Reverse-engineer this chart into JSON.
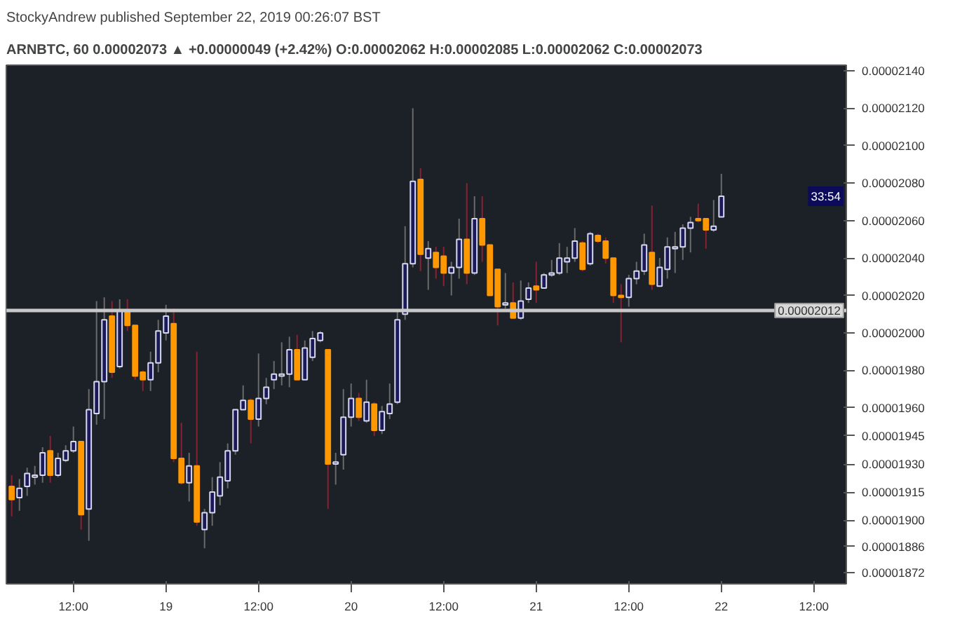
{
  "chart_data": {
    "type": "candlestick",
    "title": "StockyAndrew published September 22, 2019 00:26:07 BST",
    "subtitle": "ARNBTC, 60  0.00002073 ▲ +0.00000049 (+2.42%)  O:0.00002062  H:0.00002085  L:0.00002062  C:0.00002073",
    "x": [
      "2019-09-18T04:00",
      "2019-09-18T05:00",
      "2019-09-18T06:00",
      "2019-09-18T07:00",
      "2019-09-18T08:00",
      "2019-09-18T09:00",
      "2019-09-18T10:00",
      "2019-09-18T11:00",
      "2019-09-18T12:00",
      "2019-09-18T13:00",
      "2019-09-18T14:00",
      "2019-09-18T15:00",
      "2019-09-18T16:00",
      "2019-09-18T17:00",
      "2019-09-18T18:00",
      "2019-09-18T19:00",
      "2019-09-18T20:00",
      "2019-09-18T21:00",
      "2019-09-18T22:00",
      "2019-09-18T23:00",
      "2019-09-19T00:00",
      "2019-09-19T01:00",
      "2019-09-19T02:00",
      "2019-09-19T03:00",
      "2019-09-19T04:00",
      "2019-09-19T05:00",
      "2019-09-19T06:00",
      "2019-09-19T07:00",
      "2019-09-19T08:00",
      "2019-09-19T09:00",
      "2019-09-19T10:00",
      "2019-09-19T11:00",
      "2019-09-19T12:00",
      "2019-09-19T13:00",
      "2019-09-19T14:00",
      "2019-09-19T15:00",
      "2019-09-19T16:00",
      "2019-09-19T17:00",
      "2019-09-19T18:00",
      "2019-09-19T19:00",
      "2019-09-19T20:00",
      "2019-09-19T21:00",
      "2019-09-19T22:00",
      "2019-09-19T23:00",
      "2019-09-20T00:00",
      "2019-09-20T01:00",
      "2019-09-20T02:00",
      "2019-09-20T03:00",
      "2019-09-20T04:00",
      "2019-09-20T05:00",
      "2019-09-20T06:00",
      "2019-09-20T07:00",
      "2019-09-20T08:00",
      "2019-09-20T09:00",
      "2019-09-20T10:00",
      "2019-09-20T11:00",
      "2019-09-20T12:00",
      "2019-09-20T13:00",
      "2019-09-20T14:00",
      "2019-09-20T15:00",
      "2019-09-20T16:00",
      "2019-09-20T17:00",
      "2019-09-20T18:00",
      "2019-09-20T19:00",
      "2019-09-20T20:00",
      "2019-09-20T21:00",
      "2019-09-20T22:00",
      "2019-09-20T23:00",
      "2019-09-21T00:00",
      "2019-09-21T01:00",
      "2019-09-21T02:00",
      "2019-09-21T03:00",
      "2019-09-21T04:00",
      "2019-09-21T05:00",
      "2019-09-21T06:00",
      "2019-09-21T07:00",
      "2019-09-21T08:00",
      "2019-09-21T09:00",
      "2019-09-21T10:00",
      "2019-09-21T11:00",
      "2019-09-21T12:00",
      "2019-09-21T13:00",
      "2019-09-21T14:00",
      "2019-09-21T15:00",
      "2019-09-21T16:00",
      "2019-09-21T17:00",
      "2019-09-21T18:00",
      "2019-09-21T19:00",
      "2019-09-21T20:00",
      "2019-09-21T21:00",
      "2019-09-21T22:00",
      "2019-09-21T23:00",
      "2019-09-22T00:00"
    ],
    "ohlc": [
      [
        1.918e-05,
        1.924e-05,
        1.902e-05,
        1.911e-05
      ],
      [
        1.912e-05,
        1.922e-05,
        1.905e-05,
        1.917e-05
      ],
      [
        1.918e-05,
        1.928e-05,
        1.913e-05,
        1.925e-05
      ],
      [
        1.923e-05,
        1.929e-05,
        1.919e-05,
        1.924e-05
      ],
      [
        1.924e-05,
        1.939e-05,
        1.92e-05,
        1.936e-05
      ],
      [
        1.937e-05,
        1.945e-05,
        1.92e-05,
        1.924e-05
      ],
      [
        1.924e-05,
        1.936e-05,
        1.923e-05,
        1.933e-05
      ],
      [
        1.932e-05,
        1.94e-05,
        1.931e-05,
        1.937e-05
      ],
      [
        1.937e-05,
        1.95e-05,
        1.936e-05,
        1.942e-05
      ],
      [
        1.942e-05,
        1.942e-05,
        1.895e-05,
        1.903e-05
      ],
      [
        1.906e-05,
        1.97e-05,
        1.889e-05,
        1.959e-05
      ],
      [
        1.957e-05,
        2.017e-05,
        1.951e-05,
        1.974e-05
      ],
      [
        1.974e-05,
        2.019e-05,
        1.954e-05,
        2.007e-05
      ],
      [
        2.009e-05,
        2.017e-05,
        1.976e-05,
        1.979e-05
      ],
      [
        1.982e-05,
        2.018e-05,
        1.981e-05,
        2.012e-05
      ],
      [
        2.012e-05,
        2.018e-05,
        2.001e-05,
        2.004e-05
      ],
      [
        2.004e-05,
        2.004e-05,
        1.975e-05,
        1.977e-05
      ],
      [
        1.979e-05,
        1.98e-05,
        1.969e-05,
        1.975e-05
      ],
      [
        1.975e-05,
        1.99e-05,
        1.969e-05,
        1.984e-05
      ],
      [
        1.984e-05,
        2.007e-05,
        1.979e-05,
        2.001e-05
      ],
      [
        2e-05,
        2.015e-05,
        1.996e-05,
        2.009e-05
      ],
      [
        2.005e-05,
        2.013e-05,
        1.931e-05,
        1.933e-05
      ],
      [
        1.933e-05,
        1.952e-05,
        1.919e-05,
        1.92e-05
      ],
      [
        1.92e-05,
        1.936e-05,
        1.91e-05,
        1.929e-05
      ],
      [
        1.929e-05,
        1.99e-05,
        1.897e-05,
        1.899e-05
      ],
      [
        1.895e-05,
        1.906e-05,
        1.885e-05,
        1.904e-05
      ],
      [
        1.904e-05,
        1.923e-05,
        1.897e-05,
        1.915e-05
      ],
      [
        1.913e-05,
        1.931e-05,
        1.908e-05,
        1.923e-05
      ],
      [
        1.921e-05,
        1.941e-05,
        1.917e-05,
        1.937e-05
      ],
      [
        1.937e-05,
        1.959e-05,
        1.935e-05,
        1.959e-05
      ],
      [
        1.959e-05,
        1.972e-05,
        1.959e-05,
        1.964e-05
      ],
      [
        1.964e-05,
        1.965e-05,
        1.941e-05,
        1.954e-05
      ],
      [
        1.954e-05,
        1.989e-05,
        1.95e-05,
        1.965e-05
      ],
      [
        1.965e-05,
        1.976e-05,
        1.962e-05,
        1.971e-05
      ],
      [
        1.975e-05,
        1.985e-05,
        1.97e-05,
        1.978e-05
      ],
      [
        1.977e-05,
        1.995e-05,
        1.972e-05,
        1.978e-05
      ],
      [
        1.978e-05,
        1.998e-05,
        1.971e-05,
        1.991e-05
      ],
      [
        1.991e-05,
        1.999e-05,
        1.975e-05,
        1.975e-05
      ],
      [
        1.975e-05,
        1.996e-05,
        1.975e-05,
        1.992e-05
      ],
      [
        1.987e-05,
        2.001e-05,
        1.985e-05,
        1.997e-05
      ],
      [
        1.996e-05,
        2.001e-05,
        1.995e-05,
        2e-05
      ],
      [
        1.991e-05,
        1.991e-05,
        1.906e-05,
        1.93e-05
      ],
      [
        1.93e-05,
        1.936e-05,
        1.919e-05,
        1.931e-05
      ],
      [
        1.935e-05,
        1.97e-05,
        1.927e-05,
        1.955e-05
      ],
      [
        1.955e-05,
        1.973e-05,
        1.95e-05,
        1.965e-05
      ],
      [
        1.965e-05,
        1.968e-05,
        1.953e-05,
        1.955e-05
      ],
      [
        1.953e-05,
        1.975e-05,
        1.952e-05,
        1.963e-05
      ],
      [
        1.962e-05,
        1.963e-05,
        1.945e-05,
        1.948e-05
      ],
      [
        1.948e-05,
        1.961e-05,
        1.946e-05,
        1.958e-05
      ],
      [
        1.957e-05,
        1.973e-05,
        1.954e-05,
        1.962e-05
      ],
      [
        1.963e-05,
        2.012e-05,
        1.962e-05,
        2.007e-05
      ],
      [
        2.01e-05,
        2.057e-05,
        2.007e-05,
        2.037e-05
      ],
      [
        2.037e-05,
        2.12e-05,
        2.035e-05,
        2.081e-05
      ],
      [
        2.082e-05,
        2.088e-05,
        2.033e-05,
        2.042e-05
      ],
      [
        2.04e-05,
        2.049e-05,
        2.023e-05,
        2.045e-05
      ],
      [
        2.043e-05,
        2.046e-05,
        2.029e-05,
        2.035e-05
      ],
      [
        2.041e-05,
        2.046e-05,
        2.025e-05,
        2.032e-05
      ],
      [
        2.032e-05,
        2.038e-05,
        2.02e-05,
        2.035e-05
      ],
      [
        2.035e-05,
        2.061e-05,
        2.029e-05,
        2.05e-05
      ],
      [
        2.05e-05,
        2.08e-05,
        2.026e-05,
        2.032e-05
      ],
      [
        2.032e-05,
        2.073e-05,
        2.031e-05,
        2.061e-05
      ],
      [
        2.061e-05,
        2.073e-05,
        2.038e-05,
        2.047e-05
      ],
      [
        2.047e-05,
        2.047e-05,
        2.02e-05,
        2.02e-05
      ],
      [
        2.034e-05,
        2.034e-05,
        2.004e-05,
        2.014e-05
      ],
      [
        2.015e-05,
        2.032e-05,
        2.013e-05,
        2.016e-05
      ],
      [
        2.016e-05,
        2.027e-05,
        2.008e-05,
        2.008e-05
      ],
      [
        2.008e-05,
        2.028e-05,
        2.007e-05,
        2.017e-05
      ],
      [
        2.018e-05,
        2.027e-05,
        2.016e-05,
        2.024e-05
      ],
      [
        2.025e-05,
        2.038e-05,
        2.016e-05,
        2.023e-05
      ],
      [
        2.024e-05,
        2.032e-05,
        2.024e-05,
        2.031e-05
      ],
      [
        2.031e-05,
        2.039e-05,
        2.03e-05,
        2.032e-05
      ],
      [
        2.032e-05,
        2.048e-05,
        2.031e-05,
        2.04e-05
      ],
      [
        2.038e-05,
        2.046e-05,
        2.032e-05,
        2.04e-05
      ],
      [
        2.04e-05,
        2.056e-05,
        2.038e-05,
        2.049e-05
      ],
      [
        2.048e-05,
        2.049e-05,
        2.033e-05,
        2.034e-05
      ],
      [
        2.037e-05,
        2.054e-05,
        2.036e-05,
        2.053e-05
      ],
      [
        2.052e-05,
        2.053e-05,
        2.048e-05,
        2.049e-05
      ],
      [
        2.049e-05,
        2.051e-05,
        2.037e-05,
        2.04e-05
      ],
      [
        2.04e-05,
        2.04e-05,
        2.016e-05,
        2.02e-05
      ],
      [
        2.02e-05,
        2.026e-05,
        1.995e-05,
        2.019e-05
      ],
      [
        2.019e-05,
        2.031e-05,
        2.014e-05,
        2.029e-05
      ],
      [
        2.029e-05,
        2.038e-05,
        2.026e-05,
        2.033e-05
      ],
      [
        2.033e-05,
        2.053e-05,
        2.031e-05,
        2.047e-05
      ],
      [
        2.043e-05,
        2.068e-05,
        2.023e-05,
        2.026e-05
      ],
      [
        2.025e-05,
        2.04e-05,
        2.025e-05,
        2.035e-05
      ],
      [
        2.034e-05,
        2.051e-05,
        2.029e-05,
        2.046e-05
      ],
      [
        2.045e-05,
        2.054e-05,
        2.032e-05,
        2.046e-05
      ],
      [
        2.046e-05,
        2.058e-05,
        2.039e-05,
        2.056e-05
      ],
      [
        2.056e-05,
        2.062e-05,
        2.043e-05,
        2.059e-05
      ],
      [
        2.061e-05,
        2.069e-05,
        2.059e-05,
        2.06e-05
      ],
      [
        2.061e-05,
        2.061e-05,
        2.045e-05,
        2.055e-05
      ],
      [
        2.055e-05,
        2.071e-05,
        2.054e-05,
        2.057e-05
      ],
      [
        2.062e-05,
        2.085e-05,
        2.062e-05,
        2.073e-05
      ]
    ],
    "xlim": [
      "2019-09-18T03:18",
      "2019-09-22T16:12"
    ],
    "xticks": [
      {
        "value": "2019-09-18T12:00",
        "label": "12:00"
      },
      {
        "value": "2019-09-19",
        "label": "19"
      },
      {
        "value": "2019-09-19T12:00",
        "label": "12:00"
      },
      {
        "value": "2019-09-20",
        "label": "20"
      },
      {
        "value": "2019-09-20T12:00",
        "label": "12:00"
      },
      {
        "value": "2019-09-21",
        "label": "21"
      },
      {
        "value": "2019-09-21T12:00",
        "label": "12:00"
      },
      {
        "value": "2019-09-22",
        "label": "22"
      },
      {
        "value": "2019-09-22T12:00",
        "label": "12:00"
      }
    ],
    "ylim": [
      1.866e-05,
      2.143e-05
    ],
    "yticks": [
      {
        "value": 1.872e-05,
        "label": "0.00001872"
      },
      {
        "value": 1.886e-05,
        "label": "0.00001886"
      },
      {
        "value": 1.9e-05,
        "label": "0.00001900"
      },
      {
        "value": 1.915e-05,
        "label": "0.00001915"
      },
      {
        "value": 1.93e-05,
        "label": "0.00001930"
      },
      {
        "value": 1.945e-05,
        "label": "0.00001945"
      },
      {
        "value": 1.96e-05,
        "label": "0.00001960"
      },
      {
        "value": 1.98e-05,
        "label": "0.00001980"
      },
      {
        "value": 2e-05,
        "label": "0.00002000"
      },
      {
        "value": 2.02e-05,
        "label": "0.00002020"
      },
      {
        "value": 2.04e-05,
        "label": "0.00002040"
      },
      {
        "value": 2.06e-05,
        "label": "0.00002060"
      },
      {
        "value": 2.08e-05,
        "label": "0.00002080"
      },
      {
        "value": 2.1e-05,
        "label": "0.00002100"
      },
      {
        "value": 2.12e-05,
        "label": "0.00002120"
      },
      {
        "value": 2.14e-05,
        "label": "0.00002140"
      }
    ],
    "ref_lines": [
      {
        "axis": "y",
        "value": 2.012e-05,
        "label": "0.00002012",
        "color": "#c8c8c8"
      }
    ],
    "annotations": [
      {
        "text": "33:54",
        "y": 2.073e-05
      }
    ]
  }
}
